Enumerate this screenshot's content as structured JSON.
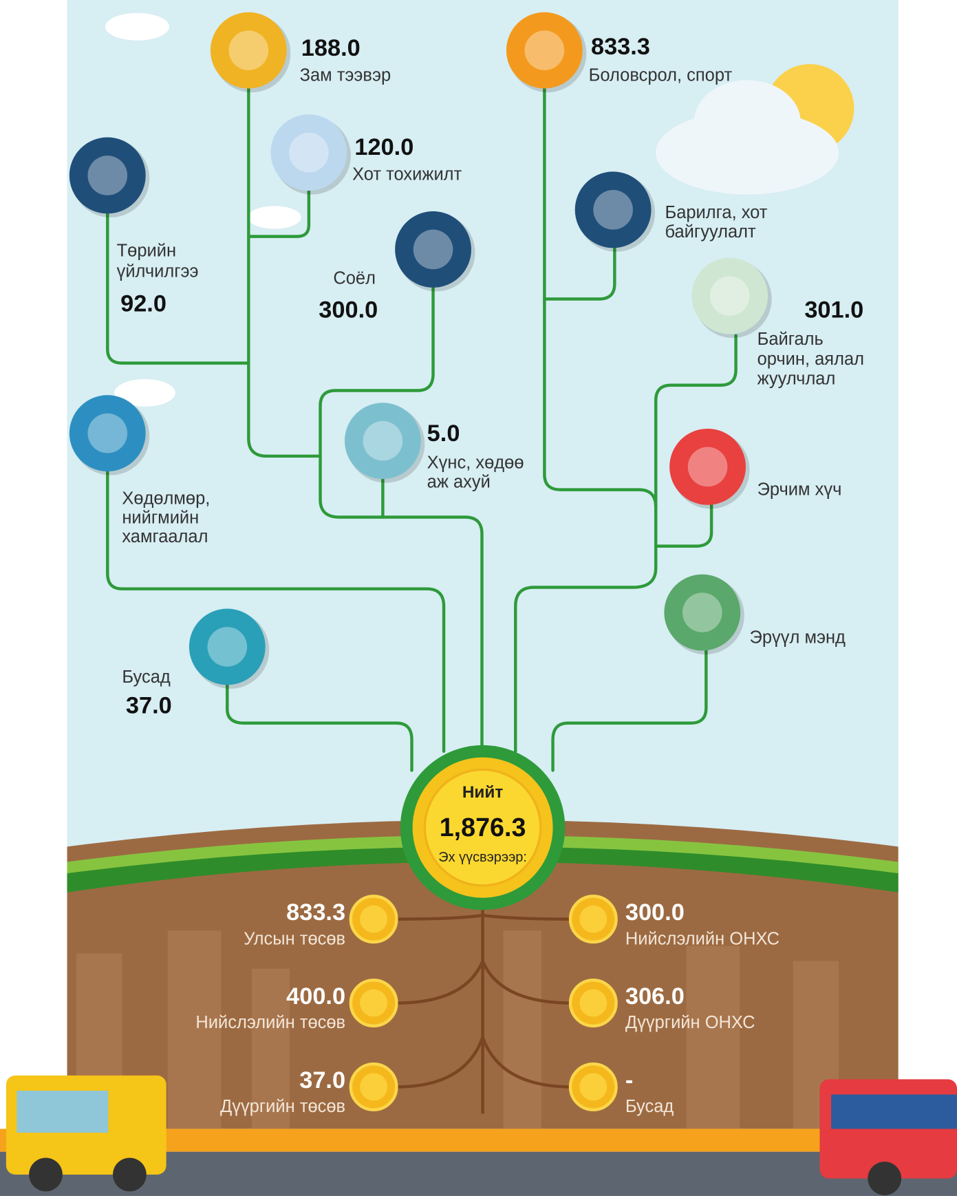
{
  "sectors": [
    {
      "value": "188.0",
      "label": [
        "Зам тээвэр"
      ]
    },
    {
      "value": "833.3",
      "label": [
        "Боловсрол, спорт"
      ]
    },
    {
      "value": "120.0",
      "label": [
        "Хот тохижилт"
      ]
    },
    {
      "value": "92.0",
      "label": [
        "Төрийн",
        "үйлчилгээ"
      ]
    },
    {
      "value": "300.0",
      "label": [
        "Соёл"
      ]
    },
    {
      "label": [
        "Барилга, хот",
        "байгуулалт"
      ]
    },
    {
      "value": "301.0",
      "label": [
        "Байгаль",
        "орчин, аялал",
        "жуулчлал"
      ]
    },
    {
      "value": "5.0",
      "label": [
        "Хүнс, хөдөө",
        "аж ахуй"
      ]
    },
    {
      "label": [
        "Хөдөлмөр,",
        "нийгмийн",
        "хамгаалал"
      ]
    },
    {
      "label": [
        "Эрчим хүч"
      ]
    },
    {
      "label": [
        "Эрүүл мэнд"
      ]
    },
    {
      "value": "37.0",
      "label": [
        "Бусад"
      ]
    }
  ],
  "total": {
    "title": "Нийт",
    "value": "1,876.3",
    "subtitle": "Эх үүсвэрээр:"
  },
  "sources": [
    {
      "value": "833.3",
      "label": "Улсын төсөв"
    },
    {
      "value": "300.0",
      "label": "Нийслэлийн ОНХС"
    },
    {
      "value": "400.0",
      "label": "Нийслэлийн төсөв"
    },
    {
      "value": "306.0",
      "label": "Дүүргийн ОНХС"
    },
    {
      "value": "37.0",
      "label": "Дүүргийн төсөв"
    },
    {
      "value": "-",
      "label": "Бусад"
    }
  ]
}
